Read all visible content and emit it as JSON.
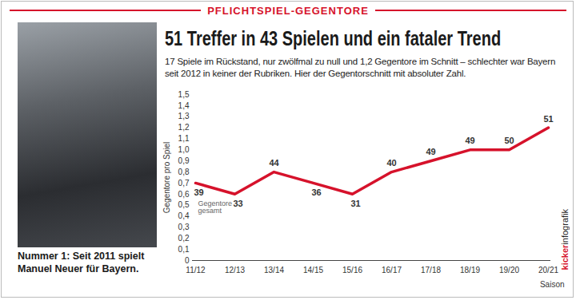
{
  "chart_data": {
    "type": "line",
    "header": "PFLICHTSPIEL-GEGENTORE",
    "title": "51 Treffer in 43 Spielen und ein fataler Trend",
    "subtitle": "17 Spiele im Rückstand, nur zwölfmal zu null und 1,2 Gegentore im Schnitt – schlechter war Bayern seit 2012 in keiner der Rubriken. Hier der Gegentorschnitt mit absoluter Zahl.",
    "caption": "Nummer 1: Seit 2011 spielt Manuel Neuer für Bayern.",
    "source_parts": [
      "kicker",
      "infografik"
    ],
    "y_label": "Gegentore pro Spiel",
    "x_label": "Saison",
    "annotation": "Gegentore gesamt",
    "categories": [
      "11/12",
      "12/13",
      "13/14",
      "14/15",
      "15/16",
      "16/17",
      "17/18",
      "18/19",
      "19/20",
      "20/21"
    ],
    "values": [
      0.7,
      0.6,
      0.8,
      0.7,
      0.6,
      0.8,
      0.9,
      1.0,
      1.0,
      1.2
    ],
    "totals": [
      39,
      33,
      44,
      36,
      31,
      40,
      49,
      49,
      50,
      51
    ],
    "color": "#d6122b",
    "marker": "none",
    "ylim": [
      0,
      1.5
    ],
    "yticks": [
      0,
      {
        "value": 0.1,
        "label": "0,1"
      },
      {
        "value": 0.2,
        "label": "0,2"
      },
      {
        "value": 0.3,
        "label": "0,3"
      },
      {
        "value": 0.4,
        "label": "0,4"
      },
      {
        "value": 0.5,
        "label": "0,5"
      },
      {
        "value": 0.6,
        "label": "0,6"
      },
      {
        "value": 0.7,
        "label": "0,7"
      },
      {
        "value": 0.8,
        "label": "0,8"
      },
      {
        "value": 0.9,
        "label": "0,9"
      },
      {
        "value": 1.0,
        "label": "1,0"
      },
      {
        "value": 1.1,
        "label": "1,1"
      },
      {
        "value": 1.2,
        "label": "1,2"
      },
      {
        "value": 1.3,
        "label": "1,3"
      },
      {
        "value": 1.4,
        "label": "1,4"
      },
      {
        "value": 1.5,
        "label": "1,5"
      }
    ],
    "grid": false
  }
}
